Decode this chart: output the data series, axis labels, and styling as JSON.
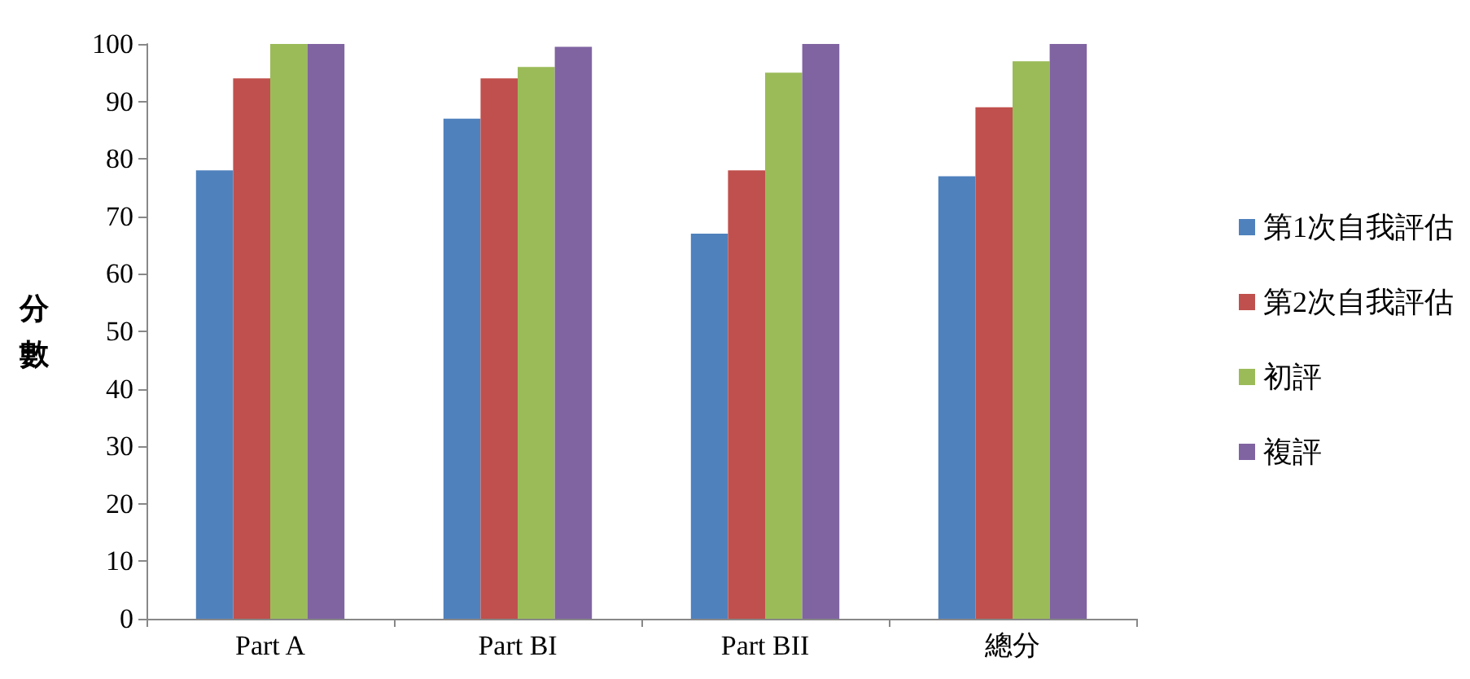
{
  "chart_data": {
    "type": "bar",
    "ylabel": "分數",
    "categories": [
      "Part A",
      "Part BI",
      "Part BII",
      "總分"
    ],
    "series": [
      {
        "name": "第1次自我評估",
        "color": "#4f81bd",
        "values": [
          78,
          87,
          67,
          77
        ]
      },
      {
        "name": "第2次自我評估",
        "color": "#c0504d",
        "values": [
          94,
          94,
          78,
          89
        ]
      },
      {
        "name": "初評",
        "color": "#9bbb59",
        "values": [
          100,
          96,
          95,
          97
        ]
      },
      {
        "name": "複評",
        "color": "#8064a2",
        "values": [
          100,
          99.5,
          100,
          100
        ]
      }
    ],
    "ylim": [
      0,
      100
    ],
    "yticks": [
      0,
      10,
      20,
      30,
      40,
      50,
      60,
      70,
      80,
      90,
      100
    ],
    "grid": false,
    "legend": "right"
  }
}
